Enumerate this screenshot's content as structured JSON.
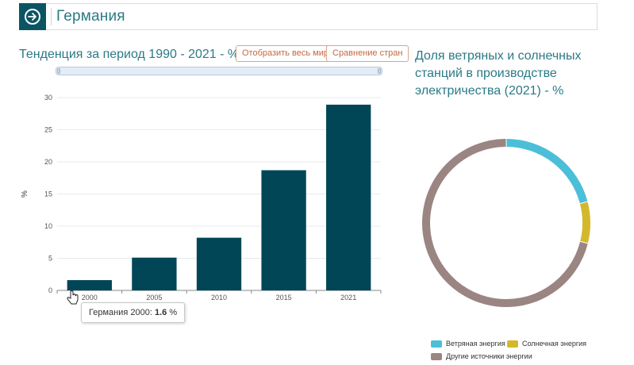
{
  "header": {
    "title": "Германия"
  },
  "left_panel": {
    "title": "Тенденция за период 1990 - 2021 - %",
    "buttons": {
      "world": "Отобразить весь мир",
      "compare": "Сравнение стран"
    }
  },
  "right_panel": {
    "title": "Доля ветряных и солнечных станций в производстве электричества (2021) - %"
  },
  "tooltip": {
    "label": "Германия 2000:",
    "value": "1.6",
    "unit": "%"
  },
  "colors": {
    "bar": "#004657",
    "wind": "#4bbfd8",
    "solar": "#d4b82b",
    "other": "#9a8583",
    "accent": "#2b7a86",
    "button": "#c4683f"
  },
  "chart_data": [
    {
      "type": "bar",
      "title": "Тенденция за период 1990 - 2021 - %",
      "categories": [
        "2000",
        "2005",
        "2010",
        "2015",
        "2021"
      ],
      "values": [
        1.6,
        5.1,
        8.2,
        18.7,
        28.9
      ],
      "ylabel": "%",
      "xlabel": "",
      "ylim": [
        0,
        30
      ],
      "yticks": [
        0,
        5,
        10,
        15,
        20,
        25,
        30
      ],
      "grid": true
    },
    {
      "type": "pie",
      "title": "Доля ветряных и солнечных станций в производстве электричества (2021) - %",
      "donut": true,
      "slices": [
        {
          "name": "Ветряная энергия",
          "value": 20.9,
          "color": "#4bbfd8"
        },
        {
          "name": "Солнечная энергия",
          "value": 8.0,
          "color": "#d4b82b"
        },
        {
          "name": "Другие источники энергии",
          "value": 71.1,
          "color": "#9a8583"
        }
      ],
      "legend_position": "bottom"
    }
  ]
}
